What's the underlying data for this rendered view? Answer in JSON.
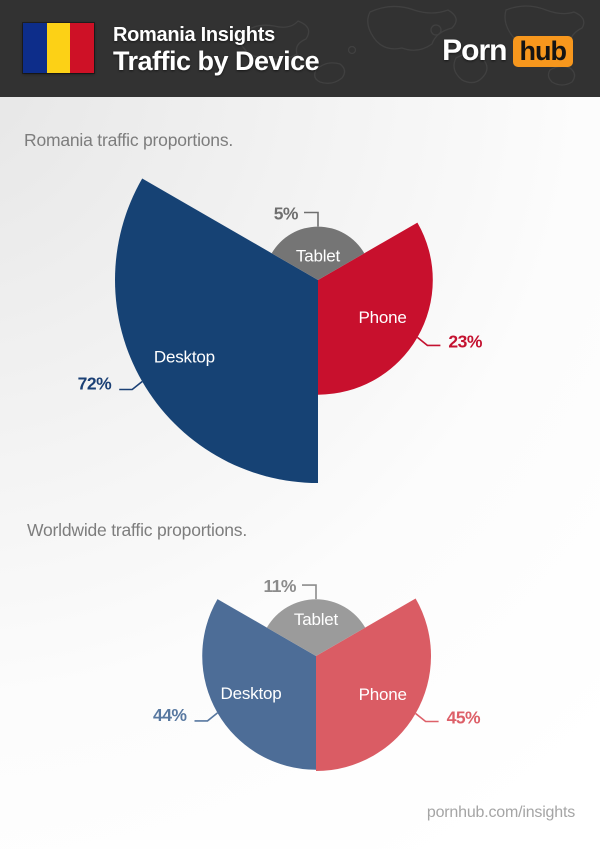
{
  "header": {
    "flag": {
      "name": "romania-flag",
      "colors": {
        "blue": "#0d2d8a",
        "yellow": "#fcd116",
        "red": "#ce1126"
      }
    },
    "title_line1": "Romania Insights",
    "title_line2": "Traffic by Device",
    "logo": {
      "word1": "Porn",
      "word2": "hub",
      "orange": "#f7971d",
      "text_dark": "#141414"
    }
  },
  "chart_data": [
    {
      "type": "pie",
      "variant": "equal-angle rose pie, slice radius proportional to sqrt(value)",
      "title": "Romania traffic proportions.",
      "legend_position": "labels-inside-slices",
      "slices": [
        {
          "label": "Desktop",
          "value": 72,
          "pct_label": "72%",
          "color": "#164274",
          "pct_color": "#1b4075"
        },
        {
          "label": "Phone",
          "value": 23,
          "pct_label": "23%",
          "color": "#c8102d",
          "pct_color": "#c41230"
        },
        {
          "label": "Tablet",
          "value": 5,
          "pct_label": "5%",
          "color": "#757575",
          "pct_color": "#6f6f6f"
        }
      ]
    },
    {
      "type": "pie",
      "variant": "equal-angle rose pie, slice radius proportional to sqrt(value)",
      "title": "Worldwide traffic proportions.",
      "legend_position": "labels-inside-slices",
      "slices": [
        {
          "label": "Desktop",
          "value": 44,
          "pct_label": "44%",
          "color": "#4d6d97",
          "pct_color": "#5878a0"
        },
        {
          "label": "Phone",
          "value": 45,
          "pct_label": "45%",
          "color": "#da5c64",
          "pct_color": "#dd6069"
        },
        {
          "label": "Tablet",
          "value": 11,
          "pct_label": "11%",
          "color": "#9b9b9b",
          "pct_color": "#8c8c8c"
        }
      ]
    }
  ],
  "footer": {
    "link": "pornhub.com/insights"
  }
}
